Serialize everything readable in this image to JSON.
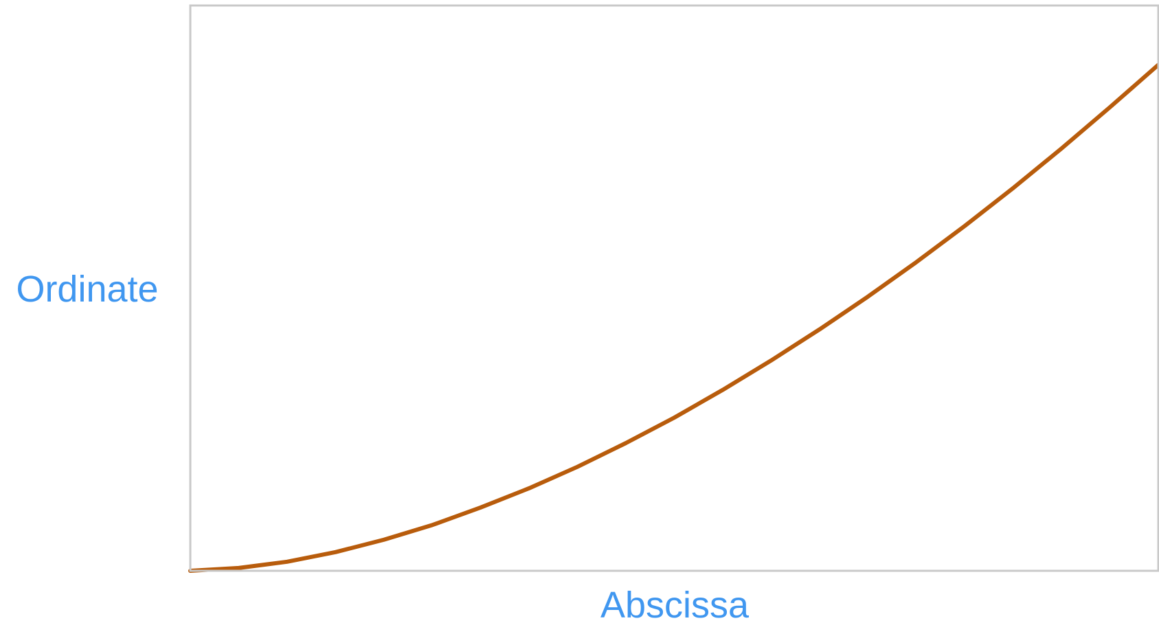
{
  "chart_data": {
    "type": "line",
    "title": "",
    "xlabel": "Abscissa",
    "ylabel": "Ordinate",
    "xlim": [
      0,
      1
    ],
    "ylim": [
      0,
      1
    ],
    "grid": false,
    "axis_ticks": false,
    "series": [
      {
        "color": "#b85c0c",
        "x": [
          0,
          0.05,
          0.1,
          0.15,
          0.2,
          0.25,
          0.3,
          0.35,
          0.4,
          0.45,
          0.5,
          0.55,
          0.6,
          0.65,
          0.7,
          0.75,
          0.8,
          0.85,
          0.9,
          0.95,
          1
        ],
        "y": [
          0,
          0.005,
          0.016,
          0.033,
          0.055,
          0.081,
          0.112,
          0.146,
          0.184,
          0.226,
          0.271,
          0.32,
          0.372,
          0.427,
          0.485,
          0.546,
          0.61,
          0.677,
          0.747,
          0.82,
          0.895
        ]
      }
    ],
    "colors": {
      "axis_label": "#4097f0",
      "frame": "#c9c9c9",
      "line": "#b85c0c"
    }
  }
}
